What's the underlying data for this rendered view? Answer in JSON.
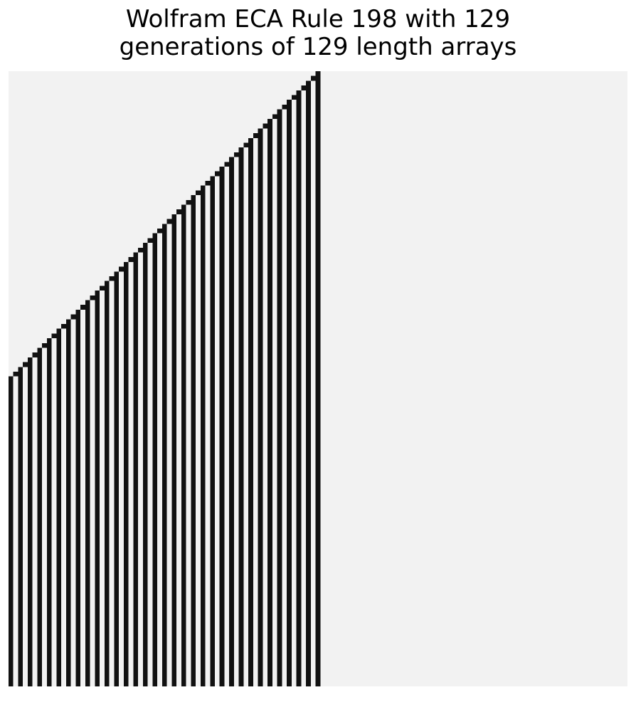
{
  "title": "Wolfram ECA Rule 198 with 129\ngenerations of 129 length arrays",
  "automaton": {
    "rule": 198,
    "generations": 129,
    "width": 129,
    "initial_active_cell": 64,
    "colors": {
      "on": "#111111",
      "off": "#f2f2f2"
    }
  }
}
